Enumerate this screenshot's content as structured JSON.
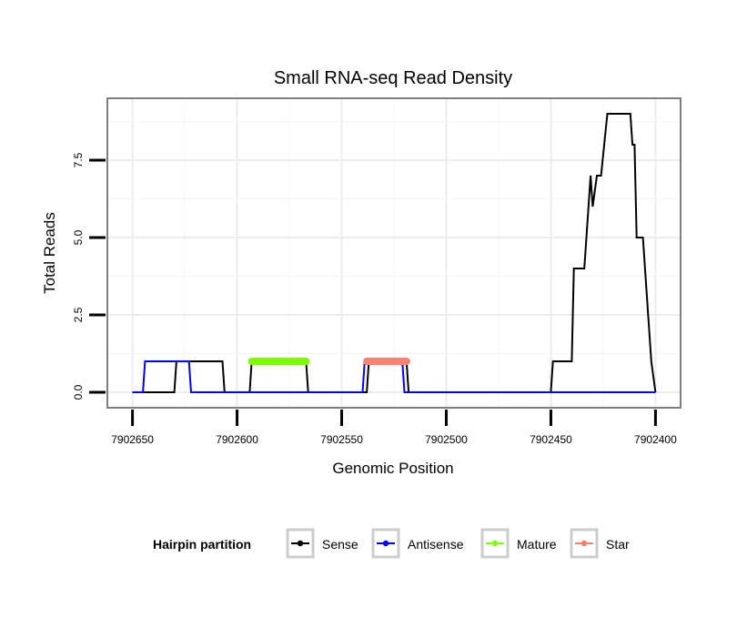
{
  "chart_data": {
    "type": "line",
    "title": "Small RNA-seq Read Density",
    "xlabel": "Genomic Position",
    "ylabel": "Total Reads",
    "xlim": [
      7902662,
      7902388
    ],
    "x_reversed": true,
    "ylim": [
      -0.5,
      9.5
    ],
    "grid": true,
    "x_ticks": [
      7902650,
      7902600,
      7902550,
      7902500,
      7902450,
      7902400
    ],
    "x_tick_labels": [
      "7902650",
      "7902600",
      "7902550",
      "7902500",
      "7902450",
      "7902400"
    ],
    "y_ticks": [
      0,
      2.5,
      5,
      7.5
    ],
    "y_tick_labels": [
      "0.0",
      "2.5",
      "5.0",
      "7.5"
    ],
    "legend": {
      "title": "Hairpin partition",
      "placement": "bottom",
      "entries": [
        {
          "label": "Sense",
          "color": "#000000"
        },
        {
          "label": "Antisense",
          "color": "#0000ff"
        },
        {
          "label": "Mature",
          "color": "#7cfc00"
        },
        {
          "label": "Star",
          "color": "#fa8072"
        }
      ]
    },
    "series": [
      {
        "name": "Sense",
        "color": "#000000",
        "points": [
          [
            7902650,
            0
          ],
          [
            7902630,
            0
          ],
          [
            7902629,
            1
          ],
          [
            7902607,
            1
          ],
          [
            7902606,
            0
          ],
          [
            7902594,
            0
          ],
          [
            7902593,
            1
          ],
          [
            7902567,
            1
          ],
          [
            7902566,
            0
          ],
          [
            7902538,
            0
          ],
          [
            7902537,
            1
          ],
          [
            7902519,
            1
          ],
          [
            7902518,
            0
          ],
          [
            7902450,
            0
          ],
          [
            7902449,
            1
          ],
          [
            7902440,
            1
          ],
          [
            7902439,
            4
          ],
          [
            7902434,
            4
          ],
          [
            7902431,
            7
          ],
          [
            7902430,
            6
          ],
          [
            7902428,
            7
          ],
          [
            7902426,
            7
          ],
          [
            7902423,
            9
          ],
          [
            7902412,
            9
          ],
          [
            7902411,
            8
          ],
          [
            7902410,
            8
          ],
          [
            7902409,
            5
          ],
          [
            7902406,
            5
          ],
          [
            7902405,
            4
          ],
          [
            7902404,
            3
          ],
          [
            7902402,
            1
          ],
          [
            7902400,
            0
          ]
        ]
      },
      {
        "name": "Antisense",
        "color": "#0000ff",
        "points": [
          [
            7902650,
            0
          ],
          [
            7902645,
            0
          ],
          [
            7902644,
            1
          ],
          [
            7902623,
            1
          ],
          [
            7902622,
            0
          ],
          [
            7902540,
            0
          ],
          [
            7902539,
            1
          ],
          [
            7902521,
            1
          ],
          [
            7902520,
            0
          ],
          [
            7902400,
            0
          ]
        ]
      },
      {
        "name": "Mature",
        "color": "#7cfc00",
        "points": [
          [
            7902593,
            1
          ],
          [
            7902567,
            1
          ]
        ]
      },
      {
        "name": "Star",
        "color": "#fa8072",
        "points": [
          [
            7902538,
            1
          ],
          [
            7902519,
            1
          ]
        ]
      }
    ]
  }
}
